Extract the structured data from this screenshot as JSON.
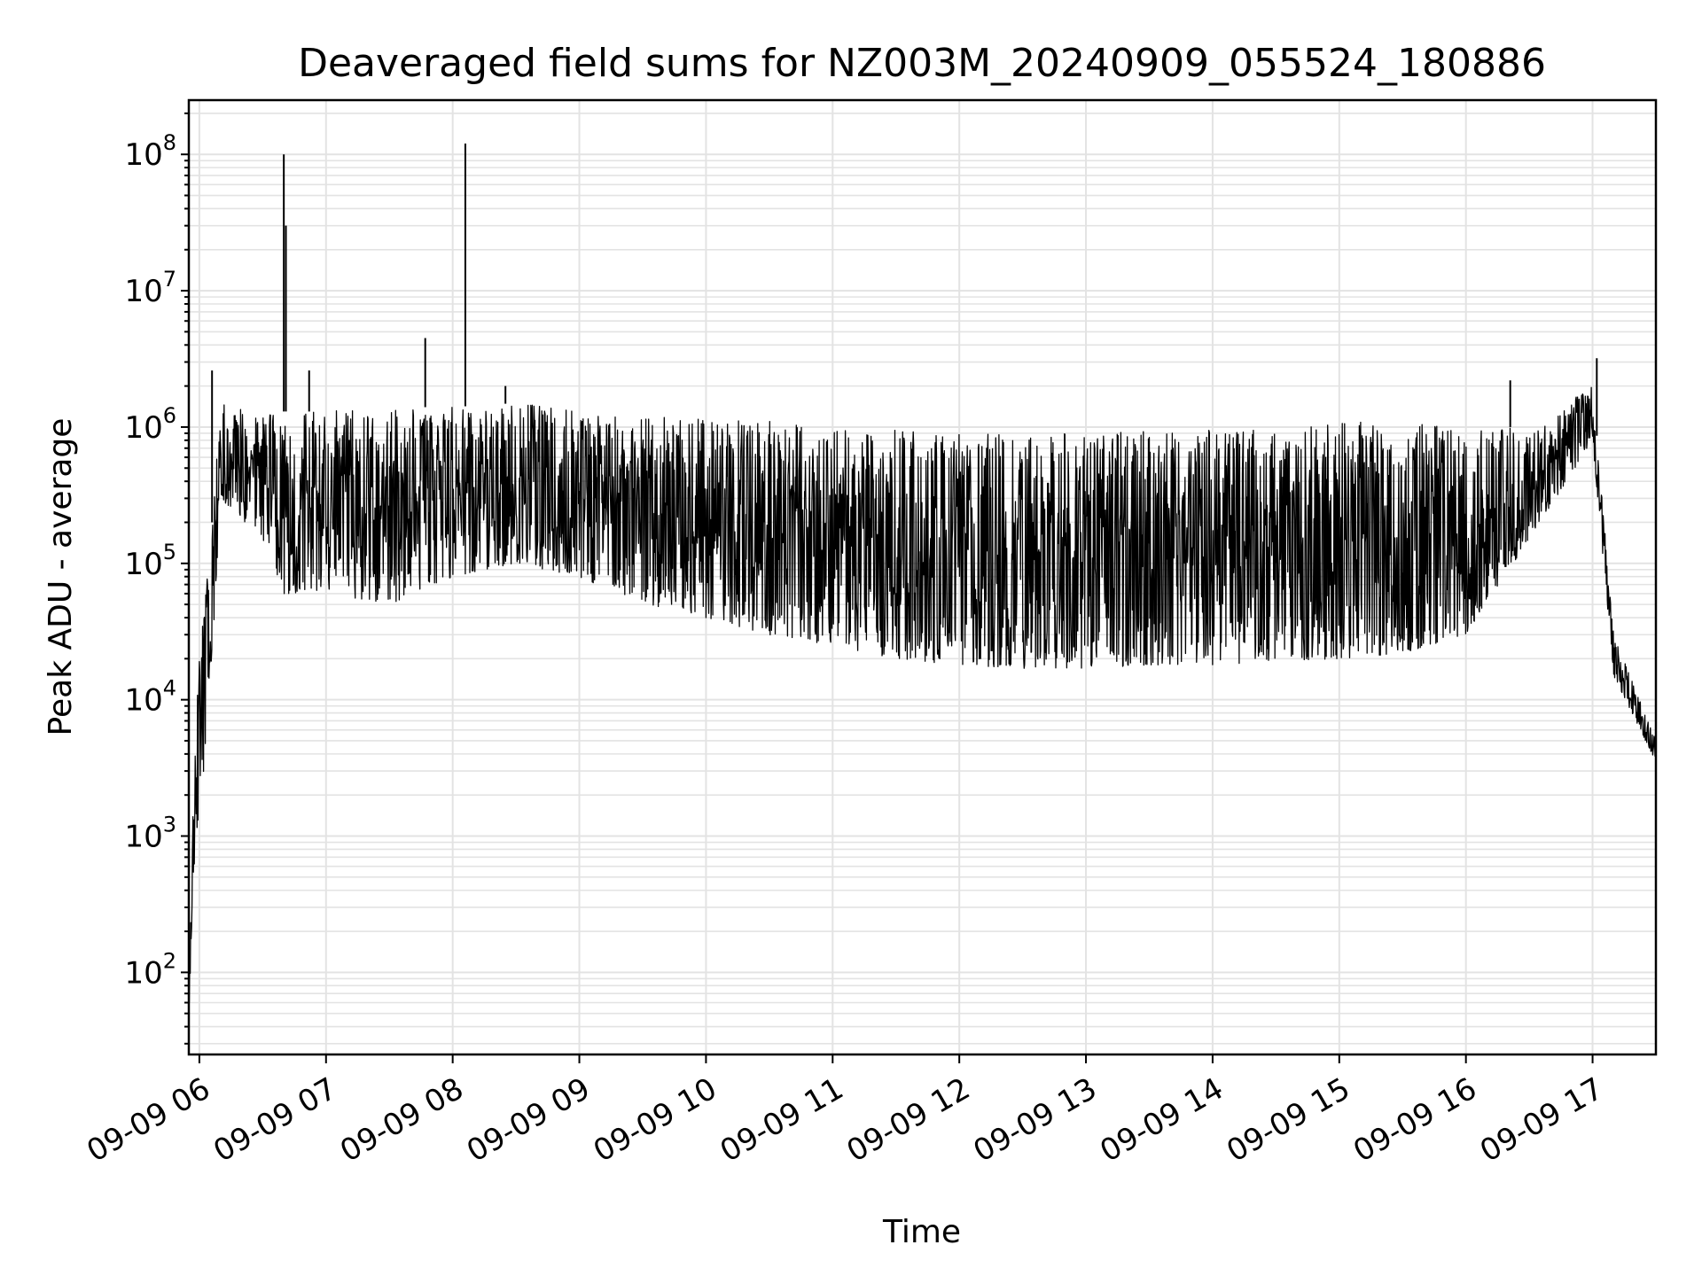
{
  "chart_data": {
    "type": "line",
    "title": "Deaveraged field sums for NZ003M_20240909_055524_180886",
    "xlabel": "Time",
    "ylabel": "Peak ADU - average",
    "yscale": "log",
    "grid": true,
    "x_tick_labels": [
      "09-09 06",
      "09-09 07",
      "09-09 08",
      "09-09 09",
      "09-09 10",
      "09-09 11",
      "09-09 12",
      "09-09 13",
      "09-09 14",
      "09-09 15",
      "09-09 16",
      "09-09 17"
    ],
    "y_tick_labels": [
      {
        "base": "10",
        "exp": "2"
      },
      {
        "base": "10",
        "exp": "3"
      },
      {
        "base": "10",
        "exp": "4"
      },
      {
        "base": "10",
        "exp": "5"
      },
      {
        "base": "10",
        "exp": "6"
      },
      {
        "base": "10",
        "exp": "7"
      },
      {
        "base": "10",
        "exp": "8"
      }
    ],
    "xlim": [
      "2024-09-09 05:55",
      "2024-09-09 17:30"
    ],
    "ylim": [
      25,
      250000000
    ],
    "series": [
      {
        "color": "#000000",
        "envelope": [
          {
            "t": "2024-09-09 05:55",
            "low": 50,
            "high": 60
          },
          {
            "t": "2024-09-09 05:58",
            "low": 600,
            "high": 10000
          },
          {
            "t": "2024-09-09 06:02",
            "low": 3000,
            "high": 50000
          },
          {
            "t": "2024-09-09 06:06",
            "low": 20000,
            "high": 200000
          },
          {
            "t": "2024-09-09 06:10",
            "low": 300000,
            "high": 1500000
          },
          {
            "t": "2024-09-09 06:30",
            "low": 150000,
            "high": 1200000
          },
          {
            "t": "2024-09-09 06:40",
            "low": 60000,
            "high": 1300000
          },
          {
            "t": "2024-09-09 07:00",
            "low": 60000,
            "high": 1300000
          },
          {
            "t": "2024-09-09 07:30",
            "low": 50000,
            "high": 1400000
          },
          {
            "t": "2024-09-09 08:00",
            "low": 80000,
            "high": 1400000
          },
          {
            "t": "2024-09-09 08:30",
            "low": 100000,
            "high": 1500000
          },
          {
            "t": "2024-09-09 09:00",
            "low": 80000,
            "high": 1300000
          },
          {
            "t": "2024-09-09 09:30",
            "low": 50000,
            "high": 1200000
          },
          {
            "t": "2024-09-09 10:00",
            "low": 40000,
            "high": 1200000
          },
          {
            "t": "2024-09-09 10:30",
            "low": 30000,
            "high": 1100000
          },
          {
            "t": "2024-09-09 11:00",
            "low": 25000,
            "high": 1000000
          },
          {
            "t": "2024-09-09 11:30",
            "low": 20000,
            "high": 950000
          },
          {
            "t": "2024-09-09 12:00",
            "low": 18000,
            "high": 900000
          },
          {
            "t": "2024-09-09 12:30",
            "low": 17000,
            "high": 900000
          },
          {
            "t": "2024-09-09 13:00",
            "low": 17000,
            "high": 900000
          },
          {
            "t": "2024-09-09 13:30",
            "low": 18000,
            "high": 950000
          },
          {
            "t": "2024-09-09 14:00",
            "low": 18000,
            "high": 1000000
          },
          {
            "t": "2024-09-09 14:30",
            "low": 19000,
            "high": 1000000
          },
          {
            "t": "2024-09-09 15:00",
            "low": 20000,
            "high": 1100000
          },
          {
            "t": "2024-09-09 15:30",
            "low": 22000,
            "high": 1100000
          },
          {
            "t": "2024-09-09 16:00",
            "low": 30000,
            "high": 1000000
          },
          {
            "t": "2024-09-09 16:30",
            "low": 150000,
            "high": 1000000
          },
          {
            "t": "2024-09-09 17:00",
            "low": 800000,
            "high": 2000000
          },
          {
            "t": "2024-09-09 17:10",
            "low": 15000,
            "high": 30000
          },
          {
            "t": "2024-09-09 17:30",
            "low": 3500,
            "high": 5000
          }
        ],
        "spikes": [
          {
            "t": "2024-09-09 06:06",
            "value": 2600000
          },
          {
            "t": "2024-09-09 06:40",
            "value": 100000000
          },
          {
            "t": "2024-09-09 06:41",
            "value": 30000000
          },
          {
            "t": "2024-09-09 06:52",
            "value": 2600000
          },
          {
            "t": "2024-09-09 07:47",
            "value": 4500000
          },
          {
            "t": "2024-09-09 08:06",
            "value": 120000000
          },
          {
            "t": "2024-09-09 08:25",
            "value": 2000000
          },
          {
            "t": "2024-09-09 16:21",
            "value": 2200000
          },
          {
            "t": "2024-09-09 17:02",
            "value": 3200000
          }
        ]
      }
    ]
  }
}
